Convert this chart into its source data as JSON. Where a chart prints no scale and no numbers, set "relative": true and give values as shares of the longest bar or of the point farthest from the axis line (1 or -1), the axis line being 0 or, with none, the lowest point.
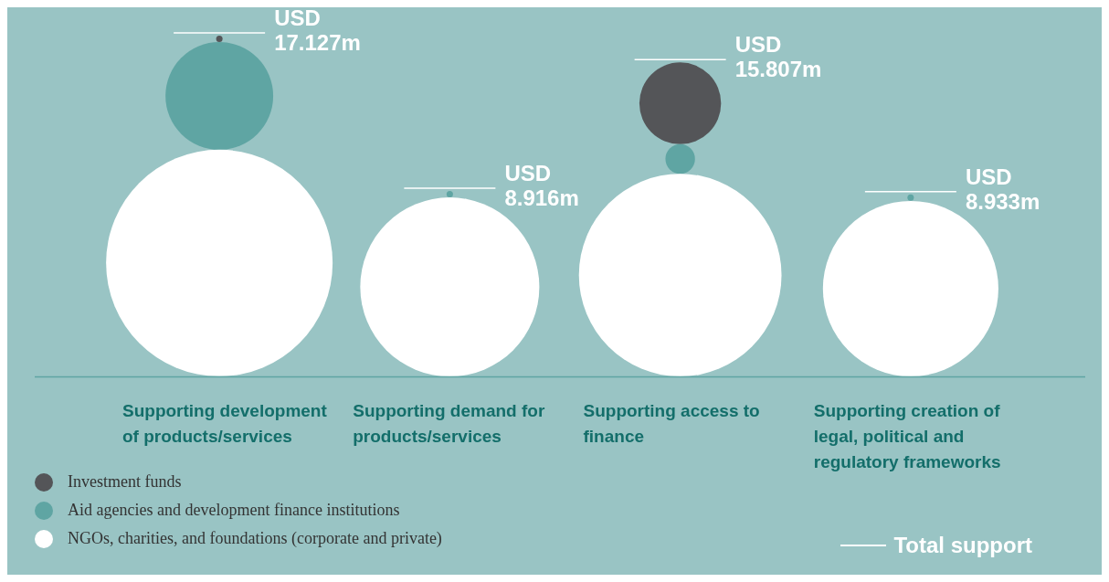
{
  "chart_data": {
    "type": "bubble",
    "relative": true,
    "categories": [
      "Supporting development of products/services",
      "Supporting demand for products/services",
      "Supporting access to finance",
      "Supporting creation of legal, political and regulatory frameworks"
    ],
    "series": [
      {
        "name": "NGOs, charities, and foundations (corporate and private)",
        "color": "#ffffff",
        "values": [
          0.336,
          0.265,
          0.3,
          0.26
        ],
        "sizes": [
          1,
          0.625,
          0.8,
          0.6
        ]
      },
      {
        "name": "Aid agencies and development finance institutions",
        "color": "#5fa5a3",
        "values": [
          0.831,
          0.54,
          0.644,
          0.53
        ],
        "sizes": [
          0.226,
          0.0008,
          0.017,
          0.0008
        ]
      },
      {
        "name": "Investment funds",
        "color": "#545558",
        "values": [
          1,
          null,
          0.809,
          null
        ],
        "sizes": [
          0.0008,
          null,
          0.13,
          null
        ]
      }
    ],
    "totals": [
      "USD 17.127m",
      "USD 8.916m",
      "USD 15.807m",
      "USD 8.933m"
    ],
    "annotations": [
      "Total support"
    ],
    "legend": "bottom left"
  }
}
